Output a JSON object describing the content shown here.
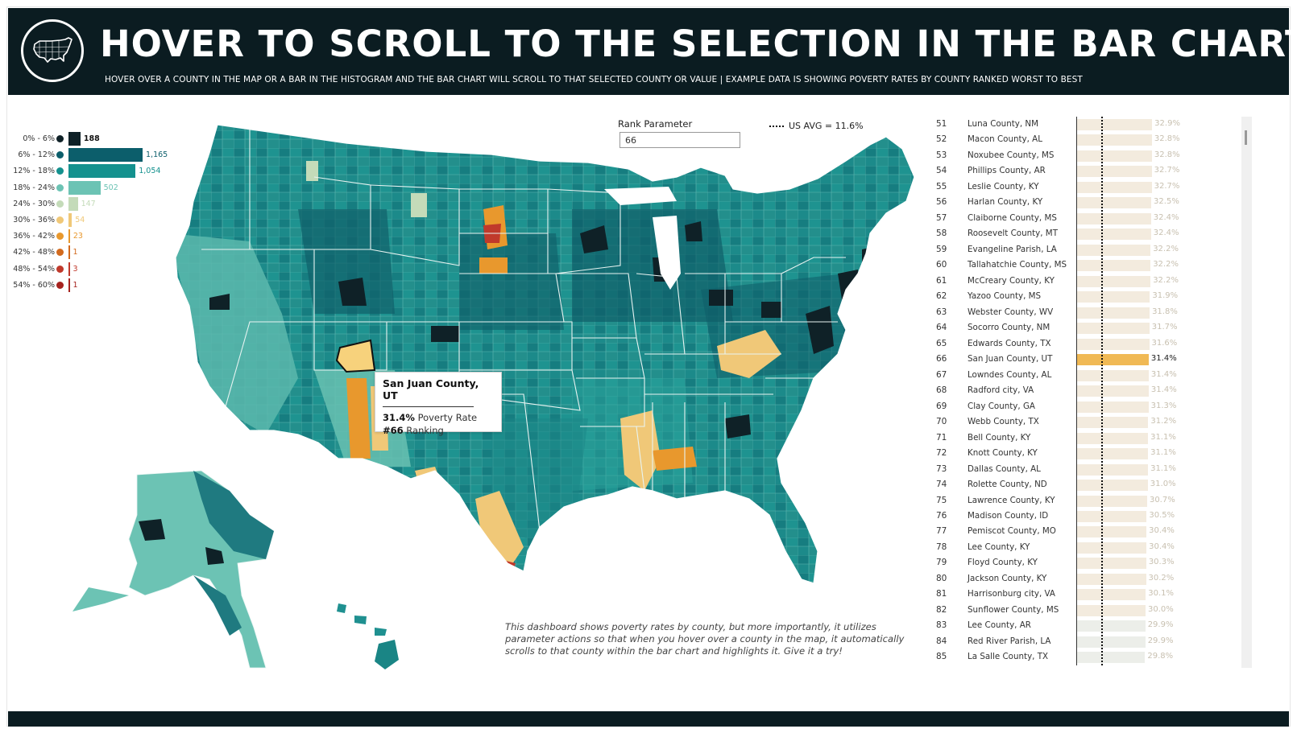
{
  "header": {
    "title": "HOVER TO SCROLL TO THE SELECTION IN THE BAR CHART",
    "subtitle": "HOVER OVER A COUNTY IN THE MAP OR A BAR IN THE HISTOGRAM AND THE BAR CHART WILL SCROLL TO THAT SELECTED COUNTY OR VALUE  |  EXAMPLE DATA IS SHOWING POVERTY RATES BY COUNTY RANKED WORST TO BEST",
    "logo_icon": "us-map-icon"
  },
  "colors": {
    "header_bg": "#0b1c21",
    "bin_0_6": "#0f2127",
    "bin_6_12": "#0c5e6b",
    "bin_12_18": "#14918e",
    "bin_18_24": "#6cc3b4",
    "bin_24_30": "#c4dbb9",
    "bin_30_36": "#f0c878",
    "bin_36_42": "#e8982d",
    "bin_42_48": "#d26a1e",
    "bin_48_54": "#c0392b",
    "bin_54_60": "#a6231f",
    "bar_default": "#f3ebde",
    "bar_lower": "#eceee9",
    "bar_selected": "#f0b955",
    "selected_county_fill": "#f7d27c"
  },
  "histogram": {
    "bins": [
      {
        "label": "0% - 6%",
        "count": 188,
        "count_label": "188",
        "color": "#0f2127"
      },
      {
        "label": "6% - 12%",
        "count": 1165,
        "count_label": "1,165",
        "color": "#0c5e6b"
      },
      {
        "label": "12% - 18%",
        "count": 1054,
        "count_label": "1,054",
        "color": "#14918e"
      },
      {
        "label": "18% - 24%",
        "count": 502,
        "count_label": "502",
        "color": "#6cc3b4"
      },
      {
        "label": "24% - 30%",
        "count": 147,
        "count_label": "147",
        "color": "#c4dbb9"
      },
      {
        "label": "30% - 36%",
        "count": 54,
        "count_label": "54",
        "color": "#f0c878"
      },
      {
        "label": "36% - 42%",
        "count": 23,
        "count_label": "23",
        "color": "#e8982d"
      },
      {
        "label": "42% - 48%",
        "count": 1,
        "count_label": "1",
        "color": "#d26a1e"
      },
      {
        "label": "48% - 54%",
        "count": 3,
        "count_label": "3",
        "color": "#c0392b"
      },
      {
        "label": "54% - 60%",
        "count": 1,
        "count_label": "1",
        "color": "#a6231f"
      }
    ]
  },
  "rank_parameter": {
    "label": "Rank Parameter",
    "value": "66"
  },
  "us_avg": {
    "label": "US AVG = 11.6%",
    "value": 11.6
  },
  "tooltip": {
    "county": "San Juan County, UT",
    "rate": "31.4%",
    "rate_label": "Poverty Rate",
    "rank": "#66",
    "rank_label": "Ranking"
  },
  "description": "This dashboard shows poverty rates by county, but more importantly, it utilizes parameter actions so that when you hover over a county in the map, it automatically scrolls to that county within the bar chart and highlights it. Give it a try!",
  "bar_chart": {
    "selected_rank": 66,
    "axis_max": 34.6,
    "rows": [
      {
        "rank": "51",
        "county": "Luna County, NM",
        "value": 32.9,
        "label": "32.9%"
      },
      {
        "rank": "52",
        "county": "Macon County, AL",
        "value": 32.8,
        "label": "32.8%"
      },
      {
        "rank": "53",
        "county": "Noxubee County, MS",
        "value": 32.8,
        "label": "32.8%"
      },
      {
        "rank": "54",
        "county": "Phillips County, AR",
        "value": 32.7,
        "label": "32.7%"
      },
      {
        "rank": "55",
        "county": "Leslie County, KY",
        "value": 32.7,
        "label": "32.7%"
      },
      {
        "rank": "56",
        "county": "Harlan County, KY",
        "value": 32.5,
        "label": "32.5%"
      },
      {
        "rank": "57",
        "county": "Claiborne County, MS",
        "value": 32.4,
        "label": "32.4%"
      },
      {
        "rank": "58",
        "county": "Roosevelt County, MT",
        "value": 32.4,
        "label": "32.4%"
      },
      {
        "rank": "59",
        "county": "Evangeline Parish, LA",
        "value": 32.2,
        "label": "32.2%"
      },
      {
        "rank": "60",
        "county": "Tallahatchie County, MS",
        "value": 32.2,
        "label": "32.2%"
      },
      {
        "rank": "61",
        "county": "McCreary County, KY",
        "value": 32.2,
        "label": "32.2%"
      },
      {
        "rank": "62",
        "county": "Yazoo County, MS",
        "value": 31.9,
        "label": "31.9%"
      },
      {
        "rank": "63",
        "county": "Webster County, WV",
        "value": 31.8,
        "label": "31.8%"
      },
      {
        "rank": "64",
        "county": "Socorro County, NM",
        "value": 31.7,
        "label": "31.7%"
      },
      {
        "rank": "65",
        "county": "Edwards County, TX",
        "value": 31.6,
        "label": "31.6%"
      },
      {
        "rank": "66",
        "county": "San Juan County, UT",
        "value": 31.4,
        "label": "31.4%"
      },
      {
        "rank": "67",
        "county": "Lowndes County, AL",
        "value": 31.4,
        "label": "31.4%"
      },
      {
        "rank": "68",
        "county": "Radford city, VA",
        "value": 31.4,
        "label": "31.4%"
      },
      {
        "rank": "69",
        "county": "Clay County, GA",
        "value": 31.3,
        "label": "31.3%"
      },
      {
        "rank": "70",
        "county": "Webb County, TX",
        "value": 31.2,
        "label": "31.2%"
      },
      {
        "rank": "71",
        "county": "Bell County, KY",
        "value": 31.1,
        "label": "31.1%"
      },
      {
        "rank": "72",
        "county": "Knott County, KY",
        "value": 31.1,
        "label": "31.1%"
      },
      {
        "rank": "73",
        "county": "Dallas County, AL",
        "value": 31.1,
        "label": "31.1%"
      },
      {
        "rank": "74",
        "county": "Rolette County, ND",
        "value": 31.0,
        "label": "31.0%"
      },
      {
        "rank": "75",
        "county": "Lawrence County, KY",
        "value": 30.7,
        "label": "30.7%"
      },
      {
        "rank": "76",
        "county": "Madison County, ID",
        "value": 30.5,
        "label": "30.5%"
      },
      {
        "rank": "77",
        "county": "Pemiscot County, MO",
        "value": 30.4,
        "label": "30.4%"
      },
      {
        "rank": "78",
        "county": "Lee County, KY",
        "value": 30.4,
        "label": "30.4%"
      },
      {
        "rank": "79",
        "county": "Floyd County, KY",
        "value": 30.3,
        "label": "30.3%"
      },
      {
        "rank": "80",
        "county": "Jackson County, KY",
        "value": 30.2,
        "label": "30.2%"
      },
      {
        "rank": "81",
        "county": "Harrisonburg city, VA",
        "value": 30.1,
        "label": "30.1%"
      },
      {
        "rank": "82",
        "county": "Sunflower County, MS",
        "value": 30.0,
        "label": "30.0%"
      },
      {
        "rank": "83",
        "county": "Lee County, AR",
        "value": 29.9,
        "label": "29.9%"
      },
      {
        "rank": "84",
        "county": "Red River Parish, LA",
        "value": 29.9,
        "label": "29.9%"
      },
      {
        "rank": "85",
        "county": "La Salle County, TX",
        "value": 29.8,
        "label": "29.8%"
      }
    ]
  }
}
